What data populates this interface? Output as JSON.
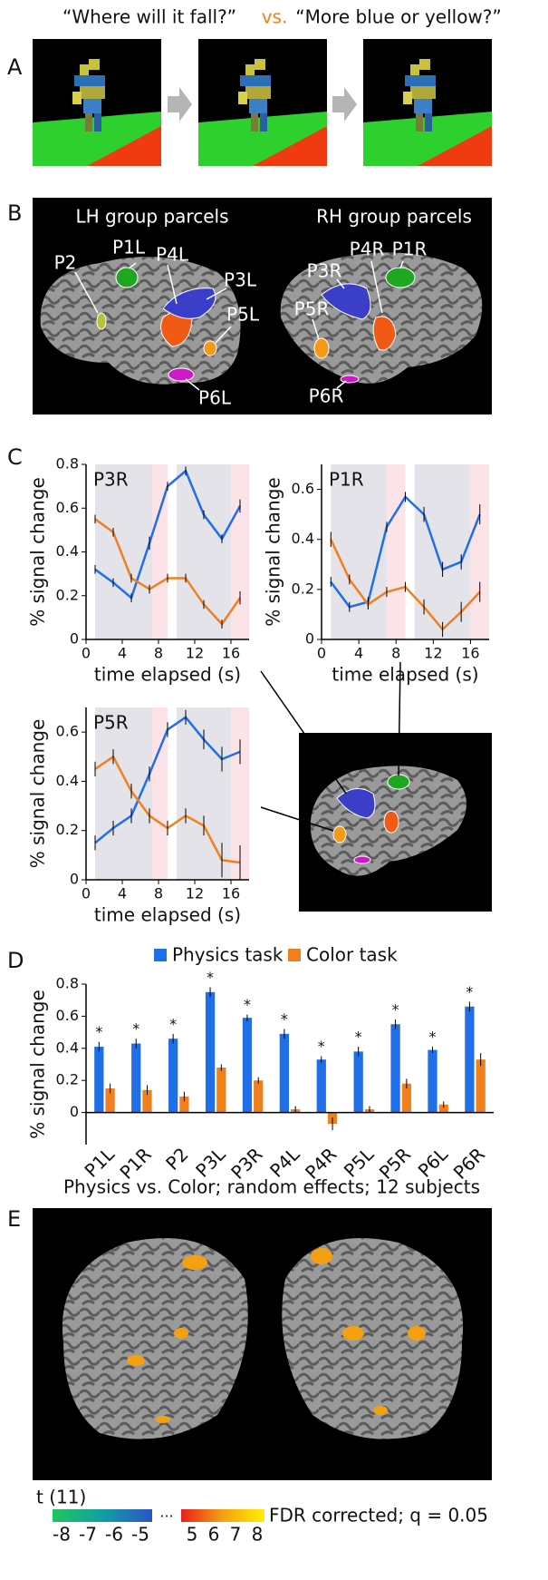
{
  "panel_labels": [
    "A",
    "B",
    "C",
    "D",
    "E"
  ],
  "panel_a": {
    "question_1": "“Where will it fall?”",
    "vs": "vs.",
    "question_2": "“More blue or yellow?”"
  },
  "panel_b": {
    "titles": [
      "LH group parcels",
      "RH group parcels"
    ],
    "parcels": [
      "P2",
      "P1L",
      "P4L",
      "P3L",
      "P5L",
      "P6L",
      "P3R",
      "P4R",
      "P1R",
      "P5R",
      "P6R"
    ]
  },
  "chart_data": [
    {
      "type": "line",
      "title": "P3R",
      "y_label": "% signal change",
      "x_label": "time elapsed (s)",
      "x": [
        1,
        3,
        5,
        7,
        9,
        11,
        13,
        15,
        17
      ],
      "xlim": [
        0,
        18
      ],
      "xticks": [
        0,
        4,
        8,
        12,
        16
      ],
      "ylim": [
        0,
        0.8
      ],
      "yticks": [
        0,
        0.2,
        0.4,
        0.6,
        0.8
      ],
      "shaded": [
        {
          "start": 1,
          "end": 7.3,
          "color": "#e3e3e9"
        },
        {
          "start": 7.3,
          "end": 9,
          "color": "#fbe3e8"
        },
        {
          "start": 10,
          "end": 16,
          "color": "#e3e3e9"
        },
        {
          "start": 16,
          "end": 18,
          "color": "#fbe3e8"
        }
      ],
      "series": [
        {
          "color": "#1f6fe8",
          "values": [
            0.32,
            0.26,
            0.19,
            0.44,
            0.7,
            0.77,
            0.57,
            0.46,
            0.61
          ],
          "errors": [
            0.02,
            0.02,
            0.02,
            0.03,
            0.02,
            0.02,
            0.02,
            0.02,
            0.03
          ]
        },
        {
          "color": "#f07f1e",
          "values": [
            0.55,
            0.49,
            0.28,
            0.23,
            0.28,
            0.28,
            0.16,
            0.07,
            0.19
          ],
          "errors": [
            0.02,
            0.02,
            0.02,
            0.02,
            0.02,
            0.02,
            0.02,
            0.02,
            0.03
          ]
        }
      ]
    },
    {
      "type": "line",
      "title": "P1R",
      "y_label": "% signal change",
      "x_label": "time elapsed (s)",
      "x": [
        1,
        3,
        5,
        7,
        9,
        11,
        13,
        15,
        17
      ],
      "xlim": [
        0,
        18
      ],
      "xticks": [
        0,
        4,
        8,
        12,
        16
      ],
      "ylim": [
        0,
        0.7
      ],
      "yticks": [
        0,
        0.2,
        0.4,
        0.6
      ],
      "shaded": [
        {
          "start": 1,
          "end": 7,
          "color": "#e3e3e9"
        },
        {
          "start": 7,
          "end": 9,
          "color": "#fbe3e8"
        },
        {
          "start": 10,
          "end": 16,
          "color": "#e3e3e9"
        },
        {
          "start": 16,
          "end": 18,
          "color": "#fbe3e8"
        }
      ],
      "series": [
        {
          "color": "#1f6fe8",
          "values": [
            0.23,
            0.13,
            0.15,
            0.45,
            0.57,
            0.5,
            0.28,
            0.31,
            0.5
          ],
          "errors": [
            0.02,
            0.02,
            0.02,
            0.02,
            0.02,
            0.03,
            0.03,
            0.03,
            0.04
          ]
        },
        {
          "color": "#f07f1e",
          "values": [
            0.4,
            0.24,
            0.14,
            0.19,
            0.21,
            0.13,
            0.04,
            0.11,
            0.19
          ],
          "errors": [
            0.03,
            0.02,
            0.02,
            0.02,
            0.02,
            0.03,
            0.03,
            0.04,
            0.04
          ]
        }
      ]
    },
    {
      "type": "line",
      "title": "P5R",
      "y_label": "% signal change",
      "x_label": "time elapsed (s)",
      "x": [
        1,
        3,
        5,
        7,
        9,
        11,
        13,
        15,
        17
      ],
      "xlim": [
        0,
        18
      ],
      "xticks": [
        0,
        4,
        8,
        12,
        16
      ],
      "ylim": [
        0,
        0.7
      ],
      "yticks": [
        0,
        0.2,
        0.4,
        0.6
      ],
      "shaded": [
        {
          "start": 1,
          "end": 7.3,
          "color": "#e3e3e9"
        },
        {
          "start": 7.3,
          "end": 9,
          "color": "#fbe3e8"
        },
        {
          "start": 10,
          "end": 16,
          "color": "#e3e3e9"
        },
        {
          "start": 16,
          "end": 18,
          "color": "#fbe3e8"
        }
      ],
      "series": [
        {
          "color": "#1f6fe8",
          "values": [
            0.15,
            0.21,
            0.26,
            0.43,
            0.61,
            0.66,
            0.57,
            0.49,
            0.52
          ],
          "errors": [
            0.03,
            0.03,
            0.03,
            0.03,
            0.03,
            0.03,
            0.04,
            0.05,
            0.05
          ]
        },
        {
          "color": "#f07f1e",
          "values": [
            0.45,
            0.5,
            0.36,
            0.26,
            0.21,
            0.26,
            0.22,
            0.08,
            0.07
          ],
          "errors": [
            0.03,
            0.03,
            0.03,
            0.03,
            0.03,
            0.03,
            0.04,
            0.07,
            0.07
          ]
        }
      ]
    },
    {
      "type": "bar",
      "y_label": "% signal change",
      "categories": [
        "P1L",
        "P1R",
        "P2",
        "P3L",
        "P3R",
        "P4L",
        "P4R",
        "P5L",
        "P5R",
        "P6L",
        "P6R"
      ],
      "ylim": [
        -0.2,
        0.8
      ],
      "yticks": [
        0,
        0.2,
        0.4,
        0.6,
        0.8
      ],
      "annotations": [
        "*",
        "*",
        "*",
        "*",
        "*",
        "*",
        "*",
        "*",
        "*",
        "*",
        "*"
      ],
      "series": [
        {
          "name": "Physics task",
          "color": "#1f6fe8",
          "values": [
            0.41,
            0.43,
            0.46,
            0.75,
            0.59,
            0.49,
            0.33,
            0.38,
            0.55,
            0.39,
            0.66
          ],
          "errors": [
            0.03,
            0.03,
            0.03,
            0.03,
            0.02,
            0.03,
            0.02,
            0.03,
            0.03,
            0.02,
            0.03
          ]
        },
        {
          "name": "Color task",
          "color": "#f07f1e",
          "values": [
            0.15,
            0.14,
            0.1,
            0.28,
            0.2,
            0.02,
            -0.07,
            0.02,
            0.18,
            0.05,
            0.33
          ],
          "errors": [
            0.03,
            0.03,
            0.03,
            0.02,
            0.02,
            0.02,
            0.04,
            0.02,
            0.03,
            0.02,
            0.04
          ]
        }
      ]
    }
  ],
  "panel_e": {
    "title": "Physics vs. Color; random effects; 12 subjects",
    "colorbar_label": "t (11)",
    "negative_ticks": [
      -8,
      -7,
      -6,
      -5
    ],
    "ellipsis": "...",
    "positive_ticks": [
      5,
      6,
      7,
      8
    ],
    "note": "FDR corrected; q = 0.05"
  }
}
